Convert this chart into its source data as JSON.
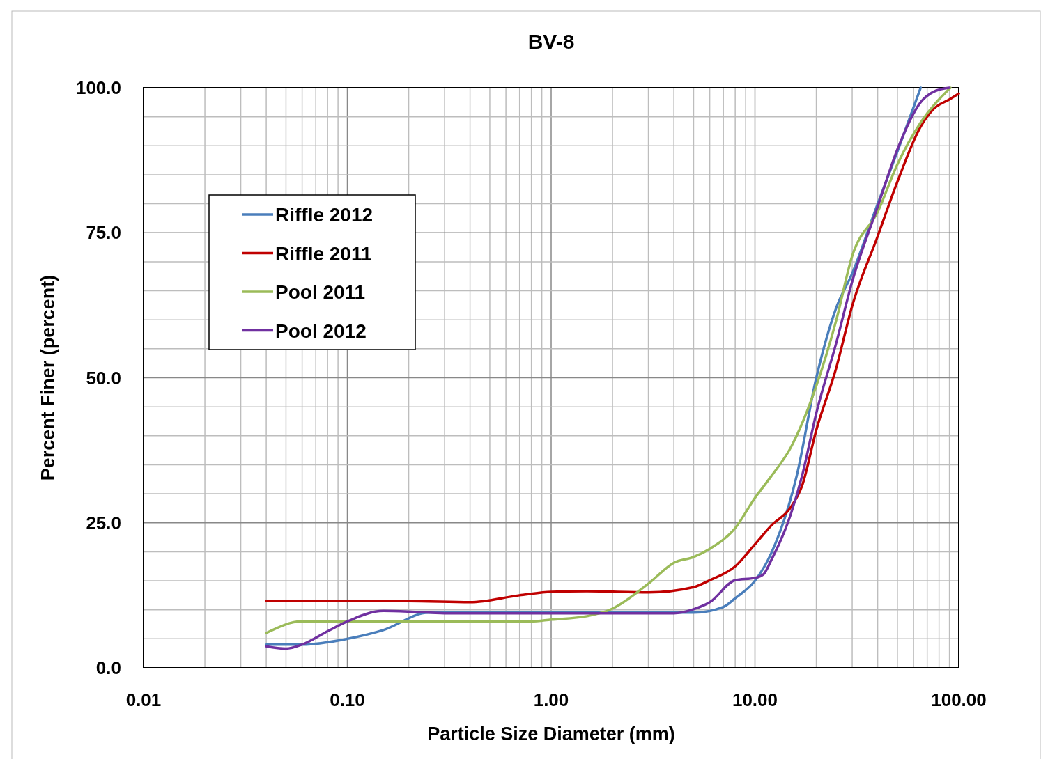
{
  "chart_data": {
    "type": "line",
    "title": "BV-8",
    "xlabel": "Particle Size Diameter (mm)",
    "ylabel": "Percent Finer (percent)",
    "log": "x",
    "grid": true,
    "legend": "top left",
    "marker": "none",
    "line_style": "solid",
    "xlim": [
      0.01,
      100
    ],
    "ylim": [
      0,
      100
    ],
    "xticks": [
      {
        "value": 0.01,
        "label": "0.01"
      },
      {
        "value": 0.02,
        "label": null
      },
      {
        "value": 0.03,
        "label": null
      },
      {
        "value": 0.04,
        "label": null
      },
      {
        "value": 0.05,
        "label": null
      },
      {
        "value": 0.06,
        "label": null
      },
      {
        "value": 0.07,
        "label": null
      },
      {
        "value": 0.08,
        "label": null
      },
      {
        "value": 0.09,
        "label": null
      },
      {
        "value": 0.1,
        "label": "0.10"
      },
      {
        "value": 0.2,
        "label": null
      },
      {
        "value": 0.3,
        "label": null
      },
      {
        "value": 0.4,
        "label": null
      },
      {
        "value": 0.5,
        "label": null
      },
      {
        "value": 0.6,
        "label": null
      },
      {
        "value": 0.7,
        "label": null
      },
      {
        "value": 0.8,
        "label": null
      },
      {
        "value": 0.9,
        "label": null
      },
      {
        "value": 1,
        "label": "1.00"
      },
      {
        "value": 2,
        "label": null
      },
      {
        "value": 3,
        "label": null
      },
      {
        "value": 4,
        "label": null
      },
      {
        "value": 5,
        "label": null
      },
      {
        "value": 6,
        "label": null
      },
      {
        "value": 7,
        "label": null
      },
      {
        "value": 8,
        "label": null
      },
      {
        "value": 9,
        "label": null
      },
      {
        "value": 10,
        "label": "10.00"
      },
      {
        "value": 20,
        "label": null
      },
      {
        "value": 30,
        "label": null
      },
      {
        "value": 40,
        "label": null
      },
      {
        "value": 50,
        "label": null
      },
      {
        "value": 60,
        "label": null
      },
      {
        "value": 70,
        "label": null
      },
      {
        "value": 80,
        "label": null
      },
      {
        "value": 90,
        "label": null
      },
      {
        "value": 100,
        "label": "100.00"
      }
    ],
    "yticks": [
      {
        "value": 0,
        "label": "0.0"
      },
      {
        "value": 5,
        "label": null
      },
      {
        "value": 10,
        "label": null
      },
      {
        "value": 15,
        "label": null
      },
      {
        "value": 20,
        "label": null
      },
      {
        "value": 25,
        "label": "25.0"
      },
      {
        "value": 30,
        "label": null
      },
      {
        "value": 35,
        "label": null
      },
      {
        "value": 40,
        "label": null
      },
      {
        "value": 45,
        "label": null
      },
      {
        "value": 50,
        "label": "50.0"
      },
      {
        "value": 55,
        "label": null
      },
      {
        "value": 60,
        "label": null
      },
      {
        "value": 65,
        "label": null
      },
      {
        "value": 70,
        "label": null
      },
      {
        "value": 75,
        "label": "75.0"
      },
      {
        "value": 80,
        "label": null
      },
      {
        "value": 85,
        "label": null
      },
      {
        "value": 90,
        "label": null
      },
      {
        "value": 95,
        "label": null
      },
      {
        "value": 100,
        "label": "100.0"
      }
    ],
    "series": [
      {
        "name": "Riffle 2012",
        "color": "#4a7ebb",
        "x": [
          0.04,
          0.06,
          0.1,
          0.15,
          0.25,
          0.5,
          1,
          2,
          5,
          7,
          8,
          10,
          12,
          16,
          20,
          25,
          30,
          40,
          50,
          65
        ],
        "values": [
          4,
          4,
          5,
          6.5,
          9.5,
          9.5,
          9.5,
          9.5,
          9.5,
          10.5,
          12,
          15,
          19.7,
          33,
          50,
          62,
          68,
          80,
          89,
          100
        ]
      },
      {
        "name": "Riffle 2011",
        "color": "#c00000",
        "x": [
          0.04,
          0.1,
          0.2,
          0.4,
          0.7,
          1,
          1.5,
          3,
          5,
          6,
          8,
          10,
          12,
          15,
          17,
          20,
          25,
          30,
          40,
          50,
          65,
          75,
          90,
          100
        ],
        "values": [
          11.5,
          11.5,
          11.5,
          11.3,
          12.5,
          13.1,
          13.2,
          13,
          13.9,
          15.1,
          17.5,
          21.3,
          24.5,
          27.7,
          31.3,
          41,
          51.6,
          62.4,
          74.4,
          83.8,
          93.3,
          96.3,
          98,
          99
        ]
      },
      {
        "name": "Pool 2011",
        "color": "#9bbb59",
        "x": [
          0.04,
          0.06,
          0.1,
          0.3,
          0.8,
          1,
          1.5,
          2,
          3,
          4,
          5,
          6,
          8,
          10,
          12,
          15,
          20,
          25,
          30,
          40,
          50,
          65,
          91
        ],
        "values": [
          6,
          8,
          8,
          8,
          8,
          8.3,
          8.9,
          10.2,
          14.5,
          18.1,
          19.1,
          20.5,
          24.1,
          29.3,
          33,
          38,
          48.6,
          59.8,
          71,
          78.6,
          86.8,
          94,
          100
        ]
      },
      {
        "name": "Pool 2012",
        "color": "#7030a0",
        "x": [
          0.04,
          0.05,
          0.06,
          0.08,
          0.1,
          0.15,
          0.2,
          0.3,
          1,
          3,
          4,
          5,
          6,
          8,
          10,
          11,
          12,
          15,
          17,
          20,
          25,
          30,
          40,
          50,
          65,
          75,
          90
        ],
        "values": [
          3.7,
          3.3,
          4,
          6.3,
          8,
          9.8,
          9.7,
          9.4,
          9.4,
          9.4,
          9.4,
          10.1,
          11.3,
          15.1,
          15.5,
          16.1,
          18.5,
          26.5,
          33,
          43.9,
          55.9,
          66.6,
          79.5,
          89.4,
          97.5,
          99.3,
          100
        ]
      }
    ]
  }
}
